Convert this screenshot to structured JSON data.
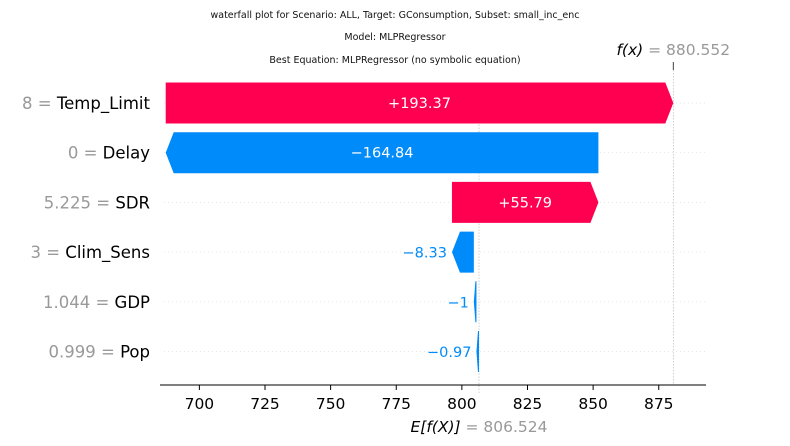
{
  "chart_data": {
    "type": "waterfall",
    "title_lines": [
      "waterfall plot for Scenario: ALL, Target: GConsumption, Subset: small_inc_enc",
      "Model: MLPRegressor",
      "Best Equation: MLPRegressor (no symbolic equation)"
    ],
    "fx_label": "f(x)",
    "fx_value": "880.552",
    "ex_label": "E[f(X)]",
    "ex_value": "806.524",
    "base_value": 806.524,
    "final_value": 880.552,
    "xlim": [
      685,
      893
    ],
    "xticks": [
      700,
      725,
      750,
      775,
      800,
      825,
      850,
      875
    ],
    "features": [
      {
        "value": "8",
        "name": "Temp_Limit",
        "contribution": 193.37,
        "label": "+193.37"
      },
      {
        "value": "0",
        "name": "Delay",
        "contribution": -164.84,
        "label": "−164.84"
      },
      {
        "value": "5.225",
        "name": "SDR",
        "contribution": 55.79,
        "label": "+55.79"
      },
      {
        "value": "3",
        "name": "Clim_Sens",
        "contribution": -8.33,
        "label": "−8.33"
      },
      {
        "value": "1.044",
        "name": "GDP",
        "contribution": -1,
        "label": "−1"
      },
      {
        "value": "0.999",
        "name": "Pop",
        "contribution": -0.97,
        "label": "−0.97"
      }
    ],
    "colors": {
      "positive": "#ff0051",
      "negative": "#008bfb",
      "muted": "#999999",
      "text": "#000000"
    }
  }
}
